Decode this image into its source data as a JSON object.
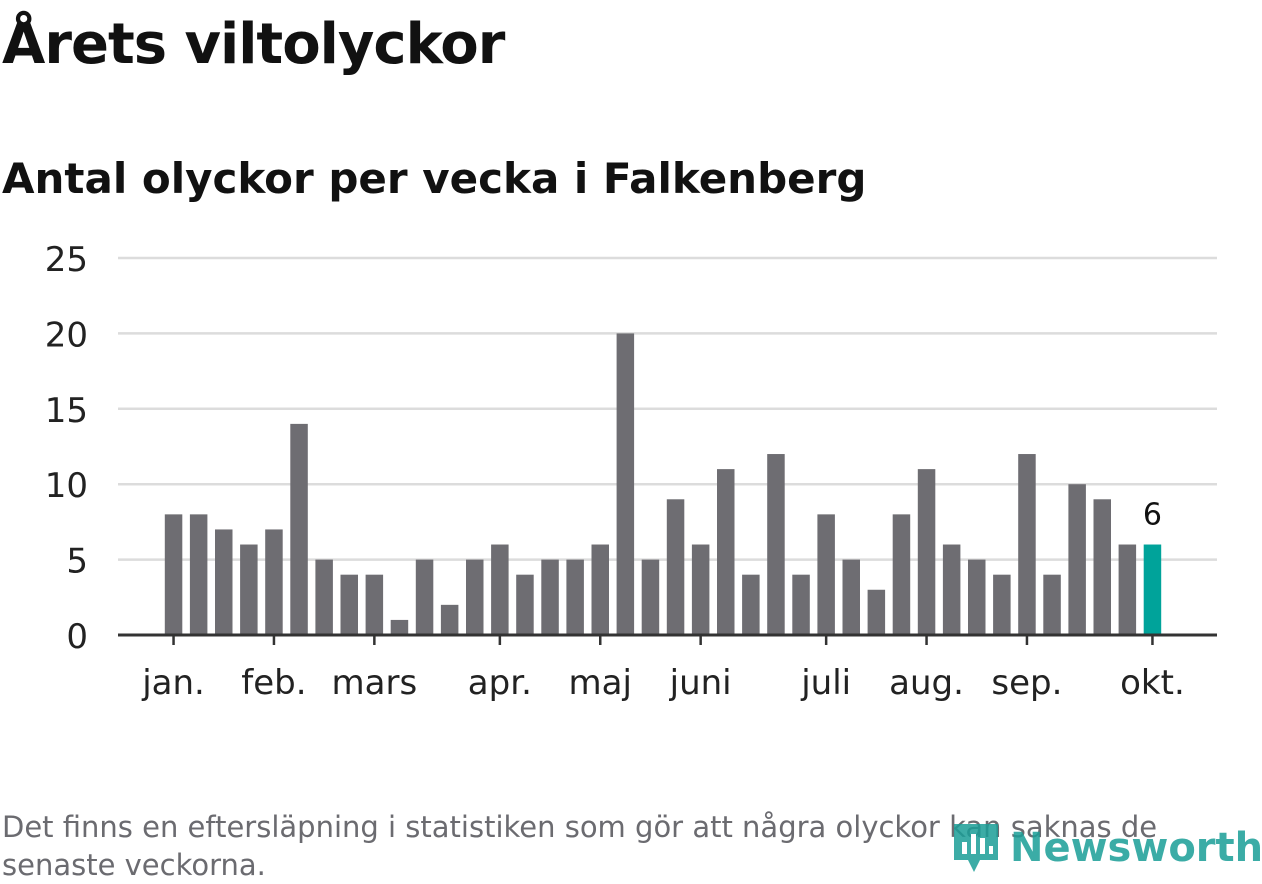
{
  "header": {
    "title": "Årets viltolyckor",
    "subtitle": "Antal olyckor per vecka i Falkenberg"
  },
  "footer": {
    "note": "Det finns en eftersläpning i statistiken som gör att några olyckor kan saknas de senaste veckorna.",
    "brand": "Newsworthy"
  },
  "colors": {
    "bar": "#6e6d72",
    "highlight": "#00a39a",
    "grid": "#dcdcdc",
    "axis": "#333333",
    "text": "#222222"
  },
  "chart_data": {
    "type": "bar",
    "title": "Årets viltolyckor",
    "subtitle": "Antal olyckor per vecka i Falkenberg",
    "xlabel": "",
    "ylabel": "",
    "ylim": [
      0,
      25
    ],
    "yticks": [
      0,
      5,
      10,
      15,
      20,
      25
    ],
    "grid": true,
    "values": [
      8,
      8,
      7,
      6,
      7,
      14,
      5,
      4,
      4,
      1,
      5,
      2,
      5,
      6,
      4,
      5,
      5,
      6,
      20,
      5,
      9,
      6,
      11,
      4,
      12,
      4,
      8,
      5,
      3,
      8,
      11,
      6,
      5,
      4,
      12,
      4,
      10,
      9,
      6,
      6
    ],
    "highlight_index": 39,
    "highlight_label": "6",
    "month_ticks": [
      {
        "label": "jan.",
        "week_index": 0.5
      },
      {
        "label": "feb.",
        "week_index": 4.5
      },
      {
        "label": "mars",
        "week_index": 8.5
      },
      {
        "label": "apr.",
        "week_index": 13.5
      },
      {
        "label": "maj",
        "week_index": 17.5
      },
      {
        "label": "juni",
        "week_index": 21.5
      },
      {
        "label": "juli",
        "week_index": 26.5
      },
      {
        "label": "aug.",
        "week_index": 30.5
      },
      {
        "label": "sep.",
        "week_index": 34.5
      },
      {
        "label": "okt.",
        "week_index": 39.5
      }
    ]
  }
}
